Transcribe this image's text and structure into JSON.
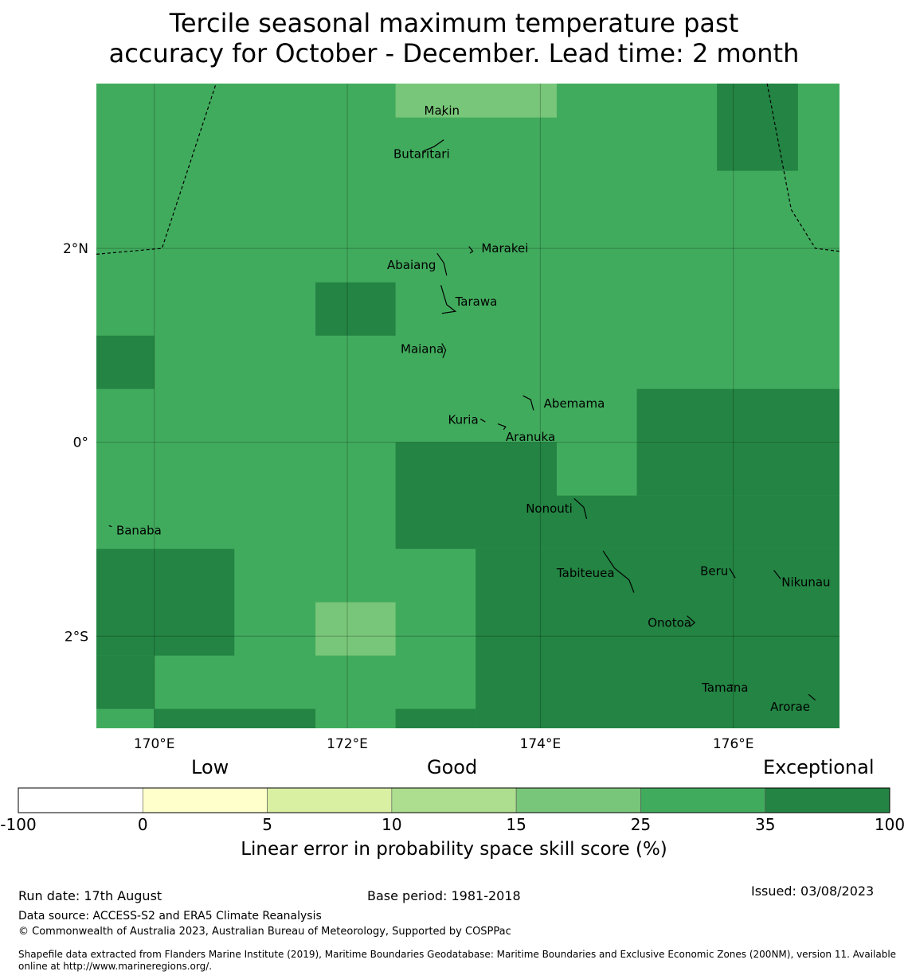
{
  "title_line1": "Tercile seasonal maximum temperature past",
  "title_line2": "accuracy for October - December. Lead time: 2 month",
  "colors": {
    "level_25_35": "#41ab5d",
    "level_35_100": "#238443",
    "level_15_25": "#78c679"
  },
  "map": {
    "lon_range": [
      169.4,
      177.1
    ],
    "lat_range": [
      -2.95,
      3.7
    ],
    "x_ticks": [
      {
        "value": 170,
        "label": "170°E"
      },
      {
        "value": 172,
        "label": "172°E"
      },
      {
        "value": 174,
        "label": "174°E"
      },
      {
        "value": 176,
        "label": "176°E"
      }
    ],
    "y_ticks": [
      {
        "value": 2,
        "label": "2°N"
      },
      {
        "value": 0,
        "label": "0°"
      },
      {
        "value": -2,
        "label": "2°S"
      }
    ],
    "background_level": "level_25_35",
    "cells": [
      {
        "lon": [
          172.5,
          174.17
        ],
        "lat": [
          3.35,
          3.7
        ],
        "level": "level_15_25"
      },
      {
        "lon": [
          175.83,
          176.67
        ],
        "lat": [
          2.8,
          3.7
        ],
        "level": "level_35_100"
      },
      {
        "lon": [
          171.67,
          172.5
        ],
        "lat": [
          1.1,
          1.65
        ],
        "level": "level_35_100"
      },
      {
        "lon": [
          169.4,
          170.0
        ],
        "lat": [
          0.55,
          1.1
        ],
        "level": "level_35_100"
      },
      {
        "lon": [
          175.0,
          177.1
        ],
        "lat": [
          0.0,
          0.55
        ],
        "level": "level_35_100"
      },
      {
        "lon": [
          172.5,
          174.17
        ],
        "lat": [
          -1.1,
          0.0
        ],
        "level": "level_35_100"
      },
      {
        "lon": [
          175.0,
          177.1
        ],
        "lat": [
          -0.55,
          0.0
        ],
        "level": "level_35_100"
      },
      {
        "lon": [
          174.17,
          175.0
        ],
        "lat": [
          -1.1,
          -0.55
        ],
        "level": "level_35_100"
      },
      {
        "lon": [
          175.0,
          177.1
        ],
        "lat": [
          -1.1,
          -0.55
        ],
        "level": "level_35_100"
      },
      {
        "lon": [
          169.4,
          170.83
        ],
        "lat": [
          -2.2,
          -1.1
        ],
        "level": "level_35_100"
      },
      {
        "lon": [
          173.33,
          177.1
        ],
        "lat": [
          -2.95,
          -1.1
        ],
        "level": "level_35_100"
      },
      {
        "lon": [
          171.67,
          172.5
        ],
        "lat": [
          -2.2,
          -1.65
        ],
        "level": "level_15_25"
      },
      {
        "lon": [
          169.4,
          170.0
        ],
        "lat": [
          -2.75,
          -2.2
        ],
        "level": "level_35_100"
      },
      {
        "lon": [
          170.0,
          171.67
        ],
        "lat": [
          -2.95,
          -2.75
        ],
        "level": "level_35_100"
      },
      {
        "lon": [
          172.5,
          173.33
        ],
        "lat": [
          -2.95,
          -2.75
        ],
        "level": "level_35_100"
      }
    ],
    "boundaries": [
      [
        [
          169.4,
          1.94
        ],
        [
          170.08,
          2.0
        ],
        [
          170.64,
          3.7
        ]
      ],
      [
        [
          176.35,
          3.7
        ],
        [
          176.6,
          2.4
        ],
        [
          176.85,
          2.0
        ],
        [
          177.1,
          1.97
        ]
      ]
    ],
    "islands": [
      {
        "name": "Makin",
        "lon": 172.98,
        "lat": 3.37,
        "path": [
          [
            172.98,
            3.37
          ],
          [
            172.99,
            3.38
          ]
        ]
      },
      {
        "name": "Butaritari",
        "lon": 172.77,
        "lat": 3.04,
        "path": [
          [
            172.78,
            3.0
          ],
          [
            172.9,
            3.05
          ],
          [
            173.0,
            3.12
          ]
        ]
      },
      {
        "name": "Marakei",
        "lon": 173.29,
        "lat": 2.0,
        "path": [
          [
            173.26,
            2.02
          ],
          [
            173.3,
            1.97
          ],
          [
            173.27,
            1.95
          ]
        ]
      },
      {
        "name": "Abaiang",
        "lon": 172.96,
        "lat": 1.83,
        "path": [
          [
            172.93,
            1.95
          ],
          [
            173.0,
            1.85
          ],
          [
            173.03,
            1.72
          ]
        ]
      },
      {
        "name": "Tarawa",
        "lon": 173.02,
        "lat": 1.45,
        "path": [
          [
            172.97,
            1.62
          ],
          [
            173.03,
            1.42
          ],
          [
            173.12,
            1.35
          ],
          [
            172.98,
            1.33
          ]
        ]
      },
      {
        "name": "Maiana",
        "lon": 173.0,
        "lat": 0.96,
        "path": [
          [
            172.98,
            1.02
          ],
          [
            173.02,
            0.95
          ],
          [
            172.99,
            0.87
          ]
        ]
      },
      {
        "name": "Abemama",
        "lon": 173.92,
        "lat": 0.4,
        "path": [
          [
            173.82,
            0.48
          ],
          [
            173.9,
            0.44
          ],
          [
            173.93,
            0.33
          ]
        ]
      },
      {
        "name": "Kuria",
        "lon": 173.4,
        "lat": 0.23,
        "path": [
          [
            173.38,
            0.24
          ],
          [
            173.43,
            0.21
          ]
        ]
      },
      {
        "name": "Aranuka",
        "lon": 173.6,
        "lat": 0.17,
        "path": [
          [
            173.56,
            0.19
          ],
          [
            173.64,
            0.16
          ],
          [
            173.62,
            0.13
          ]
        ]
      },
      {
        "name": "Nonouti",
        "lon": 174.4,
        "lat": -0.65,
        "path": [
          [
            174.35,
            -0.58
          ],
          [
            174.45,
            -0.67
          ],
          [
            174.48,
            -0.79
          ]
        ]
      },
      {
        "name": "Tabiteuea",
        "lon": 174.8,
        "lat": -1.3,
        "path": [
          [
            174.65,
            -1.12
          ],
          [
            174.77,
            -1.3
          ],
          [
            174.92,
            -1.42
          ],
          [
            174.97,
            -1.55
          ]
        ]
      },
      {
        "name": "Beru",
        "lon": 175.98,
        "lat": -1.33,
        "path": [
          [
            175.96,
            -1.3
          ],
          [
            176.02,
            -1.4
          ]
        ]
      },
      {
        "name": "Nikunau",
        "lon": 176.45,
        "lat": -1.36,
        "path": [
          [
            176.42,
            -1.32
          ],
          [
            176.49,
            -1.41
          ]
        ]
      },
      {
        "name": "Onotoa",
        "lon": 175.57,
        "lat": -1.83,
        "path": [
          [
            175.52,
            -1.79
          ],
          [
            175.6,
            -1.86
          ],
          [
            175.55,
            -1.9
          ]
        ]
      },
      {
        "name": "Tamana",
        "lon": 175.98,
        "lat": -2.5,
        "path": [
          [
            175.97,
            -2.5
          ],
          [
            176.0,
            -2.51
          ]
        ]
      },
      {
        "name": "Arorae",
        "lon": 176.82,
        "lat": -2.63,
        "path": [
          [
            176.78,
            -2.6
          ],
          [
            176.85,
            -2.66
          ]
        ]
      },
      {
        "name": "Banaba",
        "lon": 169.54,
        "lat": -0.86,
        "path": [
          [
            169.53,
            -0.86
          ],
          [
            169.56,
            -0.87
          ]
        ]
      }
    ]
  },
  "legend": {
    "category_labels": {
      "low": "Low",
      "good": "Good",
      "exceptional": "Exceptional"
    },
    "segments": [
      {
        "from": "-100",
        "to": "0",
        "color": "#ffffff"
      },
      {
        "from": "0",
        "to": "5",
        "color": "#ffffcc"
      },
      {
        "from": "5",
        "to": "10",
        "color": "#d9f0a3"
      },
      {
        "from": "10",
        "to": "15",
        "color": "#addd8e"
      },
      {
        "from": "15",
        "to": "25",
        "color": "#78c679"
      },
      {
        "from": "25",
        "to": "35",
        "color": "#41ab5d"
      },
      {
        "from": "35",
        "to": "100",
        "color": "#238443"
      }
    ],
    "tick_labels": [
      "-100",
      "0",
      "5",
      "10",
      "15",
      "25",
      "35",
      "100"
    ],
    "title": "Linear error in probability space skill score (%)"
  },
  "footer": {
    "run_date": "Run date: 17th August",
    "base_period": "Base period: 1981-2018",
    "issued": "Issued: 03/08/2023",
    "data_source": "Data source: ACCESS-S2 and ERA5 Climate Reanalysis",
    "copyright": "© Commonwealth of Australia 2023, Australian Bureau of Meteorology, Supported by COSPPac",
    "shapefile_line1": "Shapefile data extracted from Flanders Marine Institute (2019), Maritime Boundaries Geodatabase: Maritime Boundaries and Exclusive Economic Zones (200NM), version 11. Available",
    "shapefile_line2": "online at http://www.marineregions.org/."
  }
}
